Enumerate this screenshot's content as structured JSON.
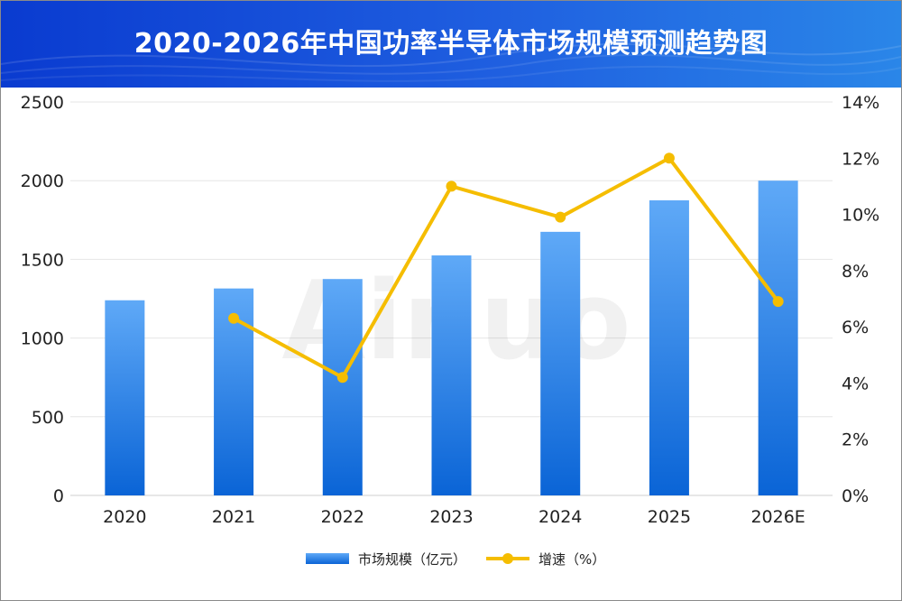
{
  "title": "2020-2026年中国功率半导体市场规模预测趋势图",
  "watermark": "Ainuo",
  "colors": {
    "bar_top": "#5fa9f7",
    "bar_bottom": "#0a64d6",
    "line": "#f5bd00",
    "header_left": "#0a3bd0",
    "header_right": "#2a86e8"
  },
  "chart_data": {
    "type": "bar",
    "categories": [
      "2020",
      "2021",
      "2022",
      "2023",
      "2024",
      "2025",
      "2026E"
    ],
    "series": [
      {
        "name": "市场规模（亿元）",
        "type": "bar",
        "axis": "left",
        "values": [
          1240,
          1315,
          1375,
          1525,
          1675,
          1875,
          2000
        ]
      },
      {
        "name": "增速（%）",
        "type": "line",
        "axis": "right",
        "values": [
          null,
          6.3,
          4.2,
          11.0,
          9.9,
          12.0,
          6.9
        ]
      }
    ],
    "y_left": {
      "min": 0,
      "max": 2500,
      "ticks": [
        "0",
        "500",
        "1000",
        "1500",
        "2000",
        "2500"
      ]
    },
    "y_right": {
      "min": 0,
      "max": 14,
      "ticks": [
        "0%",
        "2%",
        "4%",
        "6%",
        "8%",
        "10%",
        "12%",
        "14%"
      ]
    },
    "grid": true,
    "legend": "bottom-center"
  }
}
